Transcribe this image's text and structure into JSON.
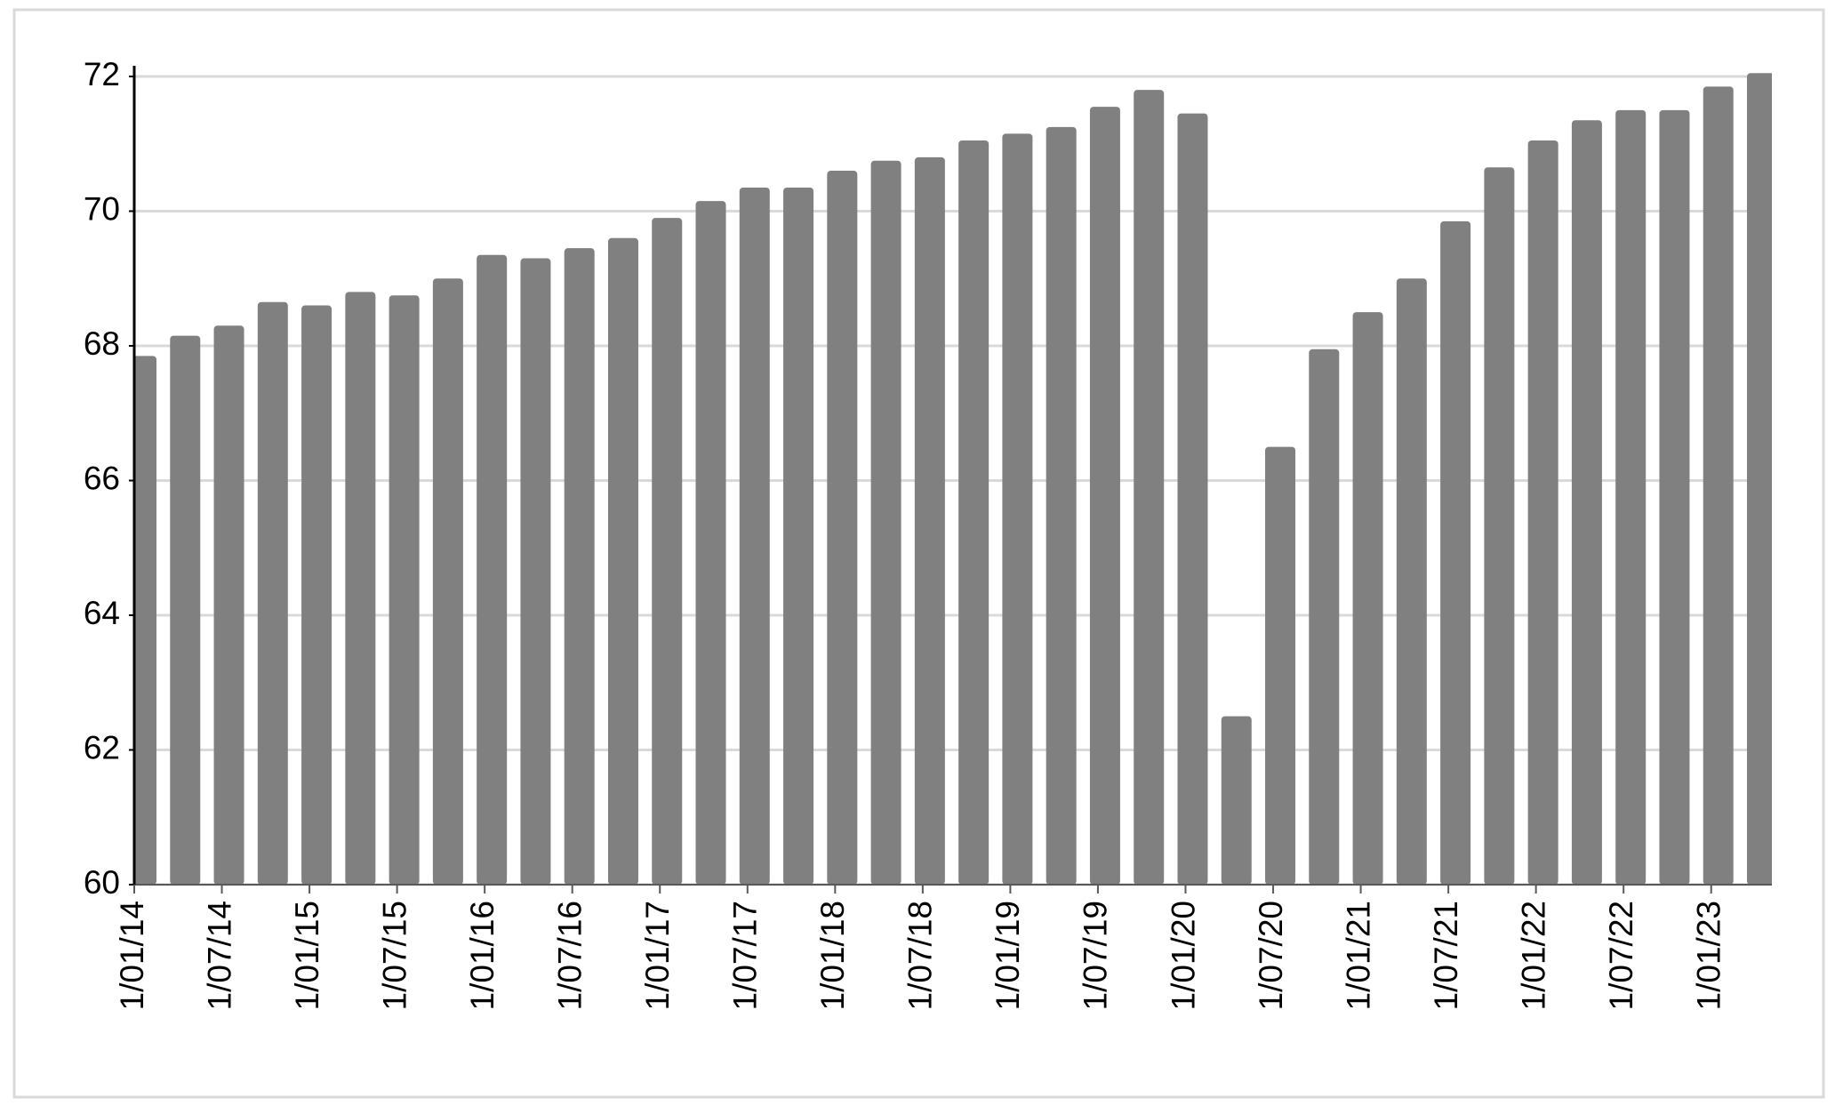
{
  "chart_data": {
    "type": "bar",
    "categories": [
      "1/01/14",
      null,
      "1/07/14",
      null,
      "1/01/15",
      null,
      "1/07/15",
      null,
      "1/01/16",
      null,
      "1/07/16",
      null,
      "1/01/17",
      null,
      "1/07/17",
      null,
      "1/01/18",
      null,
      "1/07/18",
      null,
      "1/01/19",
      null,
      "1/07/19",
      null,
      "1/01/20",
      null,
      "1/07/20",
      null,
      "1/01/21",
      null,
      "1/07/21",
      null,
      "1/01/22",
      null,
      "1/07/22",
      null,
      "1/01/23",
      null
    ],
    "values": [
      67.85,
      68.15,
      68.3,
      68.65,
      68.6,
      68.8,
      68.75,
      69.0,
      69.35,
      69.3,
      69.45,
      69.6,
      69.9,
      70.15,
      70.35,
      70.35,
      70.6,
      70.75,
      70.8,
      71.05,
      71.15,
      71.25,
      71.55,
      71.8,
      71.45,
      62.5,
      66.5,
      67.95,
      68.5,
      69.0,
      69.85,
      70.65,
      71.05,
      71.35,
      71.5,
      71.5,
      71.85,
      72.05
    ],
    "color": "#808080",
    "ylim": [
      60,
      72
    ],
    "yticks": [
      60,
      62,
      64,
      66,
      68,
      70,
      72
    ],
    "grid": true
  }
}
